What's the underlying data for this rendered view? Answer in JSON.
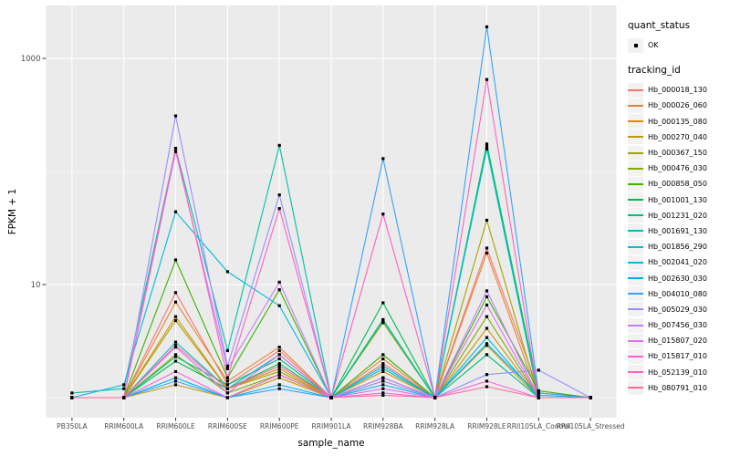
{
  "chart_data": {
    "type": "line",
    "title": "",
    "xlabel": "sample_name",
    "ylabel": "FPKM + 1",
    "y_scale": "log10",
    "grid": true,
    "legend_position": "right",
    "panel_bg": "#EBEBEB",
    "grid_color": "#FFFFFF",
    "point_color": "#000000",
    "tick_label_color": "#4d4d4d",
    "y_axis": {
      "ticks": [
        {
          "label": "1000",
          "value": 1000
        },
        {
          "label": "10",
          "value": 10
        }
      ],
      "minor": [
        100,
        1
      ],
      "range": [
        0.85,
        2800
      ]
    },
    "categories": [
      "PB350LA",
      "RRIM600LA",
      "RRIM600LE",
      "RRIM600SE",
      "RRIM600PE",
      "RRIM901LA",
      "RRIM928BA",
      "RRIM928LA",
      "RRIM928LE",
      "RRII105LA_Control",
      "RRII105LA_Stressed"
    ],
    "legends": [
      {
        "title": "quant_status",
        "type": "point",
        "items": [
          {
            "label": "OK"
          }
        ]
      },
      {
        "title": "tracking_id",
        "type": "line"
      }
    ],
    "series": [
      {
        "name": "Hb_000018_130",
        "color": "#F8766D",
        "values": [
          1.0,
          1.0,
          8.5,
          1.3,
          2.6,
          1.0,
          2.0,
          1.0,
          21,
          1.15,
          1.0
        ]
      },
      {
        "name": "Hb_000026_060",
        "color": "#EA8331",
        "values": [
          1.0,
          1.0,
          7.0,
          1.4,
          2.8,
          1.0,
          2.2,
          1.0,
          19,
          1.0,
          1.0
        ]
      },
      {
        "name": "Hb_000135_080",
        "color": "#D89000",
        "values": [
          1.0,
          1.0,
          5.2,
          1.2,
          1.8,
          1.0,
          1.7,
          1.0,
          4.1,
          1.0,
          1.0
        ]
      },
      {
        "name": "Hb_000270_040",
        "color": "#C09B00",
        "values": [
          1.0,
          1.0,
          1.3,
          1.0,
          1.5,
          1.0,
          1.5,
          1.0,
          2.9,
          1.0,
          1.0
        ]
      },
      {
        "name": "Hb_000367_150",
        "color": "#A3A500",
        "values": [
          1.0,
          1.0,
          4.8,
          1.2,
          1.7,
          1.0,
          4.6,
          1.0,
          37,
          1.0,
          1.0
        ]
      },
      {
        "name": "Hb_000476_030",
        "color": "#7CAE00",
        "values": [
          1.0,
          1.0,
          2.4,
          1.1,
          1.6,
          1.0,
          1.4,
          1.0,
          5.2,
          1.0,
          1.0
        ]
      },
      {
        "name": "Hb_000858_050",
        "color": "#39B600",
        "values": [
          1.0,
          1.0,
          16.5,
          1.5,
          9.0,
          1.0,
          2.4,
          1.0,
          7.8,
          1.15,
          1.0
        ]
      },
      {
        "name": "Hb_001001_130",
        "color": "#00BB4E",
        "values": [
          1.0,
          1.0,
          2.1,
          1.2,
          2.0,
          1.0,
          6.9,
          1.0,
          175,
          1.1,
          1.0
        ]
      },
      {
        "name": "Hb_001231_020",
        "color": "#00BF7D",
        "values": [
          1.0,
          1.0,
          2.3,
          1.3,
          2.2,
          1.0,
          4.9,
          1.0,
          2.4,
          1.0,
          1.0
        ]
      },
      {
        "name": "Hb_001691_130",
        "color": "#00C1A3",
        "values": [
          1.1,
          1.2,
          160,
          2.6,
          170,
          1.0,
          4.8,
          1.0,
          165,
          1.0,
          1.0
        ]
      },
      {
        "name": "Hb_001856_290",
        "color": "#00BFC4",
        "values": [
          1.0,
          1.0,
          3.1,
          1.2,
          2.4,
          1.0,
          1.8,
          1.0,
          158,
          1.0,
          1.0
        ]
      },
      {
        "name": "Hb_002041_020",
        "color": "#00BAE0",
        "values": [
          1.0,
          1.3,
          44,
          13,
          6.5,
          1.0,
          1.9,
          1.0,
          3.4,
          1.0,
          1.0
        ]
      },
      {
        "name": "Hb_002630_030",
        "color": "#00B0F6",
        "values": [
          1.0,
          1.0,
          1.5,
          1.0,
          1.3,
          1.0,
          1.3,
          1.0,
          3.0,
          1.05,
          1.0
        ]
      },
      {
        "name": "Hb_004010_080",
        "color": "#35A2FF",
        "values": [
          1.0,
          1.0,
          1.4,
          1.0,
          1.2,
          1.0,
          130,
          1.0,
          1900,
          1.1,
          1.0
        ]
      },
      {
        "name": "Hb_005029_030",
        "color": "#9590FF",
        "values": [
          1.0,
          1.0,
          310,
          1.9,
          62,
          1.0,
          1.4,
          1.0,
          1.6,
          1.75,
          1.0
        ]
      },
      {
        "name": "Hb_007456_030",
        "color": "#C77CFF",
        "values": [
          1.0,
          1.0,
          150,
          1.8,
          10.5,
          1.0,
          1.5,
          1.0,
          8.8,
          1.0,
          1.0
        ]
      },
      {
        "name": "Hb_015807_020",
        "color": "#E76BF3",
        "values": [
          1.0,
          1.0,
          2.8,
          1.1,
          2.4,
          1.0,
          1.2,
          1.0,
          6.6,
          1.0,
          1.0
        ]
      },
      {
        "name": "Hb_015817_010",
        "color": "#FA62DB",
        "values": [
          1.0,
          1.0,
          1.7,
          1.0,
          1.6,
          1.0,
          1.1,
          1.0,
          1.4,
          1.0,
          1.0
        ]
      },
      {
        "name": "Hb_052139_010",
        "color": "#FF62BC",
        "values": [
          1.0,
          1.0,
          160,
          1.5,
          47,
          1.0,
          42,
          1.0,
          650,
          1.0,
          1.0
        ]
      },
      {
        "name": "Hb_080791_010",
        "color": "#FF6A98",
        "values": [
          1.0,
          1.0,
          2.9,
          1.2,
          1.9,
          1.0,
          1.05,
          1.0,
          1.25,
          1.0,
          1.0
        ]
      }
    ]
  }
}
